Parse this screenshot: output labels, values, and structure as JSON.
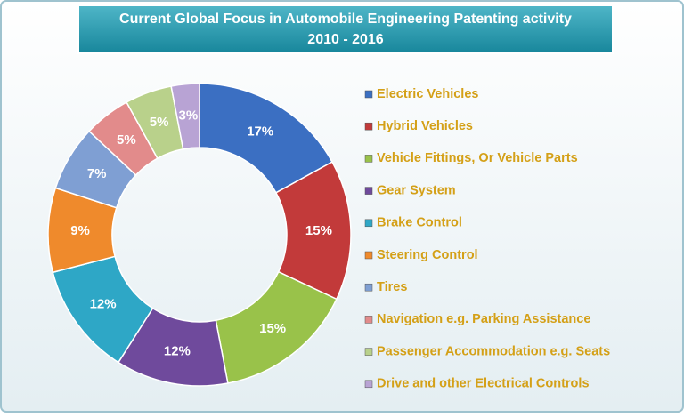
{
  "chart_data": {
    "type": "donut",
    "title": "Current Global Focus in Automobile Engineering Patenting activity",
    "subtitle": "2010 - 2016",
    "categories": [
      "Electric Vehicles",
      "Hybrid Vehicles",
      "Vehicle Fittings, Or Vehicle Parts",
      "Gear System",
      "Brake Control",
      "Steering Control",
      "Tires",
      "Navigation e.g. Parking Assistance",
      "Passenger Accommodation e.g. Seats",
      "Drive and other Electrical Controls"
    ],
    "values": [
      17,
      15,
      15,
      12,
      12,
      9,
      7,
      5,
      5,
      3
    ],
    "value_labels": [
      "17%",
      "15%",
      "15%",
      "12%",
      "12%",
      "9%",
      "7%",
      "5%",
      "5%",
      "3%"
    ],
    "colors": [
      "#3b6fc2",
      "#c23a3a",
      "#99c24a",
      "#6f4a9c",
      "#2ea7c6",
      "#ef8a2c",
      "#7f9fd3",
      "#e28b8b",
      "#b9d18b",
      "#b8a3d4"
    ],
    "legend": "right"
  }
}
